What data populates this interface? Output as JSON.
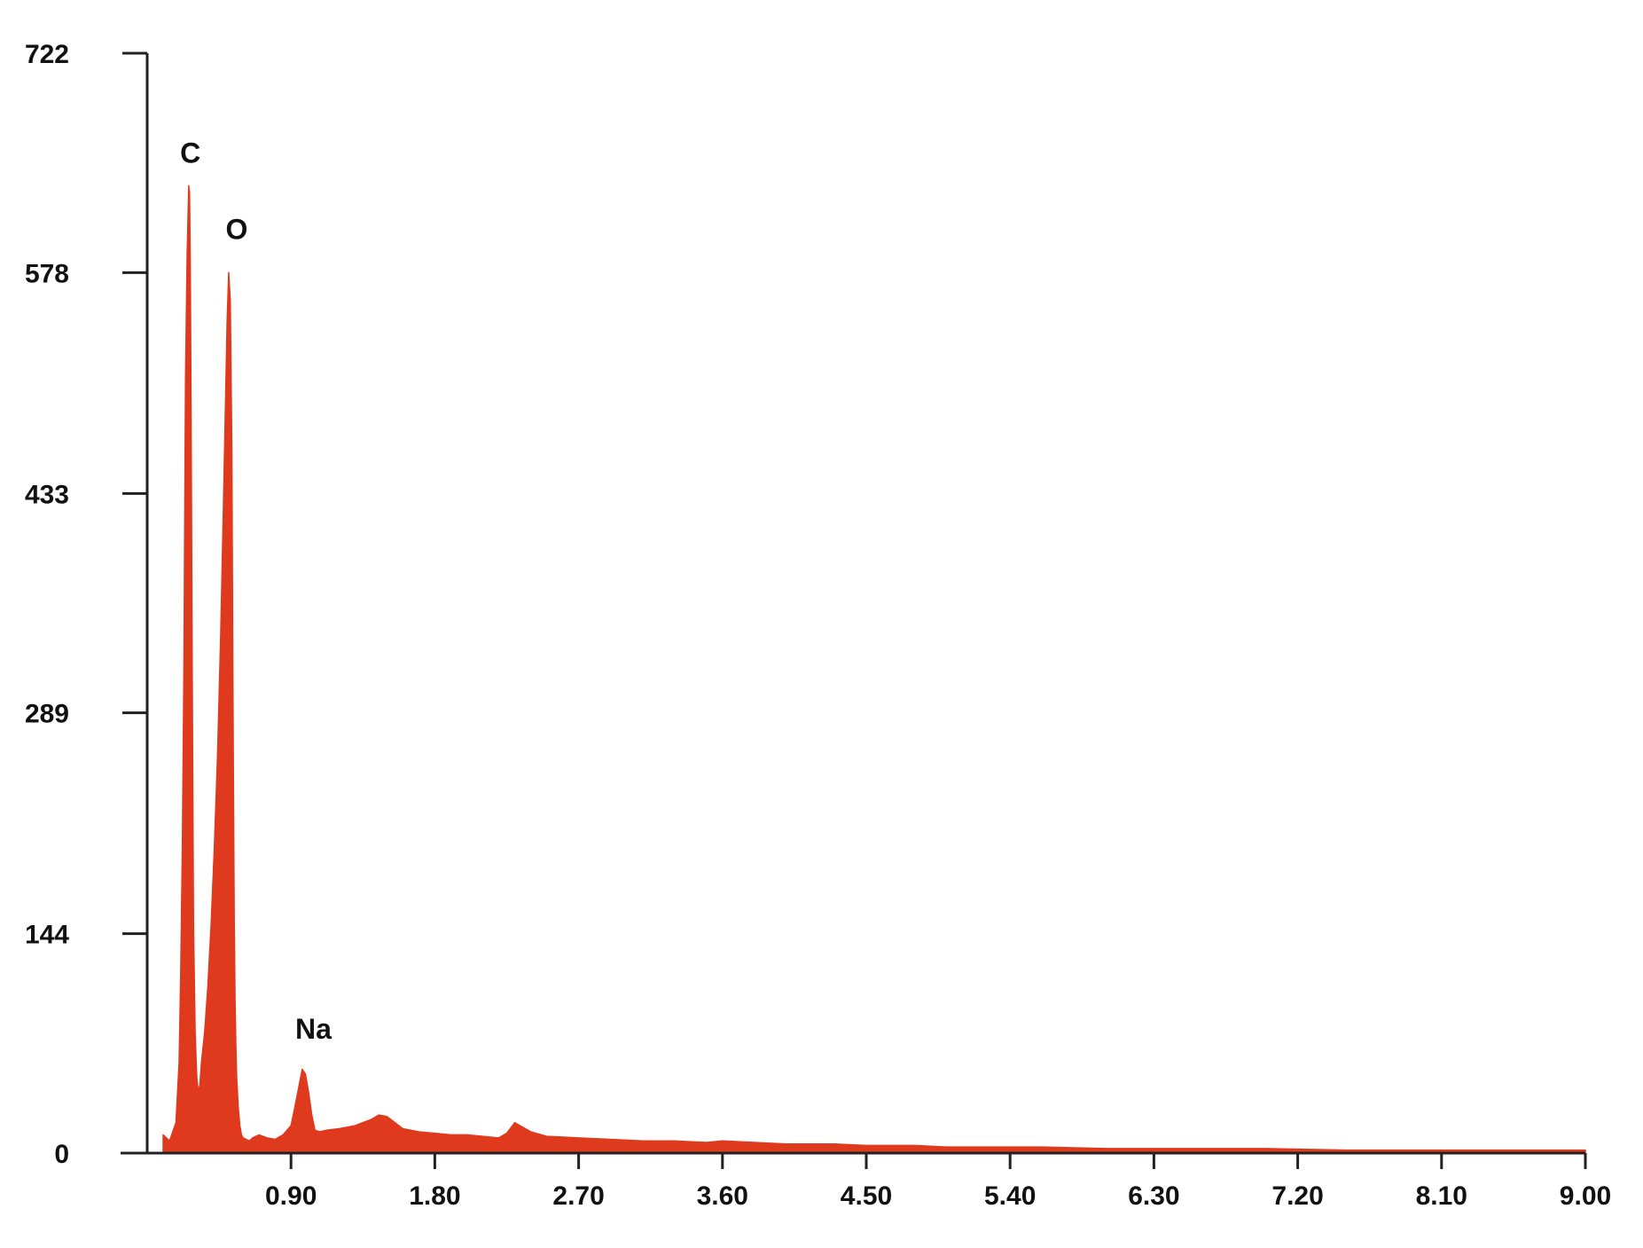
{
  "chart_data": {
    "type": "area",
    "title": "",
    "xlabel": "",
    "ylabel": "",
    "xlim": [
      0,
      9.0
    ],
    "ylim": [
      0,
      722
    ],
    "x_ticks": [
      {
        "value": 0.9,
        "label": "0.90"
      },
      {
        "value": 1.8,
        "label": "1.80"
      },
      {
        "value": 2.7,
        "label": "2.70"
      },
      {
        "value": 3.6,
        "label": "3.60"
      },
      {
        "value": 4.5,
        "label": "4.50"
      },
      {
        "value": 5.4,
        "label": "5.40"
      },
      {
        "value": 6.3,
        "label": "6.30"
      },
      {
        "value": 7.2,
        "label": "7.20"
      },
      {
        "value": 8.1,
        "label": "8.10"
      },
      {
        "value": 9.0,
        "label": "9.00"
      }
    ],
    "y_ticks": [
      {
        "value": 0,
        "label": "0"
      },
      {
        "value": 144,
        "label": "144"
      },
      {
        "value": 289,
        "label": "289"
      },
      {
        "value": 433,
        "label": "433"
      },
      {
        "value": 578,
        "label": "578"
      },
      {
        "value": 722,
        "label": "722"
      }
    ],
    "grid": false,
    "fill_color": "#e03a1e",
    "series": [
      {
        "x": [
          0.1,
          0.14,
          0.18,
          0.2,
          0.21,
          0.22,
          0.23,
          0.235,
          0.24,
          0.25,
          0.26,
          0.265,
          0.27,
          0.275,
          0.28,
          0.285,
          0.29,
          0.3,
          0.31,
          0.32,
          0.33,
          0.34,
          0.36,
          0.38,
          0.4,
          0.42,
          0.44,
          0.46,
          0.48,
          0.5,
          0.51,
          0.52,
          0.53,
          0.535,
          0.54,
          0.545,
          0.55,
          0.555,
          0.56,
          0.57,
          0.58,
          0.59,
          0.6,
          0.62,
          0.64,
          0.66,
          0.7,
          0.75,
          0.8,
          0.85,
          0.9,
          0.92,
          0.95,
          0.97,
          0.99,
          1.01,
          1.03,
          1.05,
          1.08,
          1.12,
          1.2,
          1.3,
          1.4,
          1.45,
          1.5,
          1.55,
          1.6,
          1.7,
          1.8,
          1.9,
          2.0,
          2.1,
          2.2,
          2.25,
          2.3,
          2.4,
          2.5,
          2.7,
          2.9,
          3.1,
          3.3,
          3.5,
          3.6,
          3.8,
          4.0,
          4.3,
          4.5,
          4.8,
          5.0,
          5.3,
          5.6,
          6.0,
          6.5,
          7.0,
          7.5,
          8.0,
          8.5,
          9.0
        ],
        "y": [
          12,
          8,
          20,
          60,
          120,
          200,
          320,
          420,
          510,
          590,
          635,
          630,
          580,
          480,
          360,
          250,
          150,
          80,
          50,
          40,
          45,
          60,
          80,
          110,
          150,
          200,
          260,
          340,
          440,
          545,
          578,
          560,
          460,
          340,
          240,
          150,
          100,
          70,
          50,
          30,
          18,
          12,
          10,
          9,
          8,
          10,
          12,
          10,
          9,
          12,
          18,
          28,
          44,
          55,
          52,
          40,
          25,
          15,
          14,
          15,
          16,
          18,
          22,
          25,
          24,
          20,
          16,
          14,
          13,
          12,
          12,
          11,
          10,
          13,
          20,
          14,
          11,
          10,
          9,
          8,
          8,
          7,
          8,
          7,
          6,
          6,
          5,
          5,
          4,
          4,
          4,
          3,
          3,
          3,
          2,
          2,
          2,
          2
        ]
      }
    ],
    "annotations": [
      {
        "text": "C",
        "x": 0.27,
        "y": 650
      },
      {
        "text": "O",
        "x": 0.56,
        "y": 600
      },
      {
        "text": "Na",
        "x": 1.04,
        "y": 75
      }
    ]
  }
}
